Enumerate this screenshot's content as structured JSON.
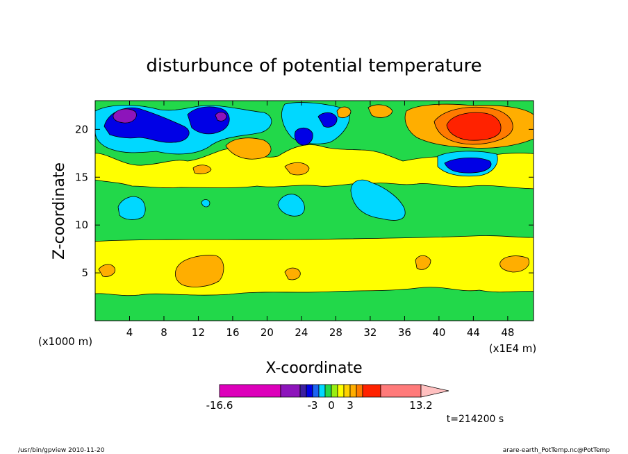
{
  "chart_data": {
    "type": "heatmap",
    "title": "disturbunce of potential temperature",
    "xlabel": "X-coordinate",
    "ylabel": "Z-coordinate",
    "x_units_label": "(x1000 m)",
    "x_scale_label": "(x1E4 m)",
    "xlim": [
      0,
      51
    ],
    "ylim": [
      0,
      23
    ],
    "x_ticks": [
      4,
      8,
      12,
      16,
      20,
      24,
      28,
      32,
      36,
      40,
      44,
      48
    ],
    "y_ticks": [
      5,
      10,
      15,
      20
    ],
    "time_label": "t=214200 s",
    "colorbar": {
      "tick_labels": [
        "-16.6",
        "-3",
        "0",
        "3",
        "13.2"
      ],
      "colors": [
        "#dd00bb",
        "#8d14bb",
        "#3c1fa0",
        "#0000e6",
        "#1c64f2",
        "#00d8ff",
        "#22d84a",
        "#99ee11",
        "#ffff00",
        "#ffd200",
        "#ffae00",
        "#ff7a00",
        "#ff2200",
        "#ff7a7a",
        "#ffc0c0"
      ],
      "boundaries": [
        -16.6,
        -6,
        -5,
        -4,
        -3,
        -2,
        -1,
        0,
        1,
        2,
        3,
        4,
        5,
        8,
        13.2
      ]
    },
    "field_regions": [
      {
        "level": "0 to 1",
        "color": "#ffff00",
        "z_range": [
          3.5,
          8.5
        ]
      },
      {
        "level": "0 to 1",
        "color": "#ffff00",
        "x_range": [
          7,
          45
        ],
        "z_range": [
          14.5,
          17
        ]
      },
      {
        "level": "-1 to 0",
        "color": "#22d84a",
        "z_range": [
          8.5,
          14.5
        ]
      },
      {
        "level": "-1 to 0",
        "color": "#22d84a",
        "z_range": [
          0,
          3.5
        ]
      },
      {
        "level": "-2 to -1",
        "color": "#00d8ff",
        "x": [
          4,
          24,
          32
        ],
        "z": [
          12,
          12,
          12
        ]
      },
      {
        "level": "-6 to -3",
        "color": "#0000e6",
        "x": [
          3,
          7,
          11,
          14,
          24,
          26,
          43
        ],
        "z": [
          21,
          20,
          19,
          21,
          19,
          20,
          16.5
        ]
      },
      {
        "level": "< -6",
        "color": "#8d14bb",
        "x": [
          3,
          14
        ],
        "z": [
          21.5,
          21.5
        ]
      },
      {
        "level": "1 to 3",
        "color": "#ffae00",
        "x": [
          1,
          12,
          18,
          23,
          38,
          48
        ],
        "z": [
          5.5,
          5,
          18,
          5,
          6,
          6
        ]
      },
      {
        "level": "> 5",
        "color": "#ff2200",
        "x": [
          44
        ],
        "z": [
          20
        ]
      }
    ]
  },
  "footer": {
    "left_text": "/usr/bin/gpview  2010-11-20",
    "right_text": "arare-earth_PotTemp.nc@PotTemp"
  }
}
